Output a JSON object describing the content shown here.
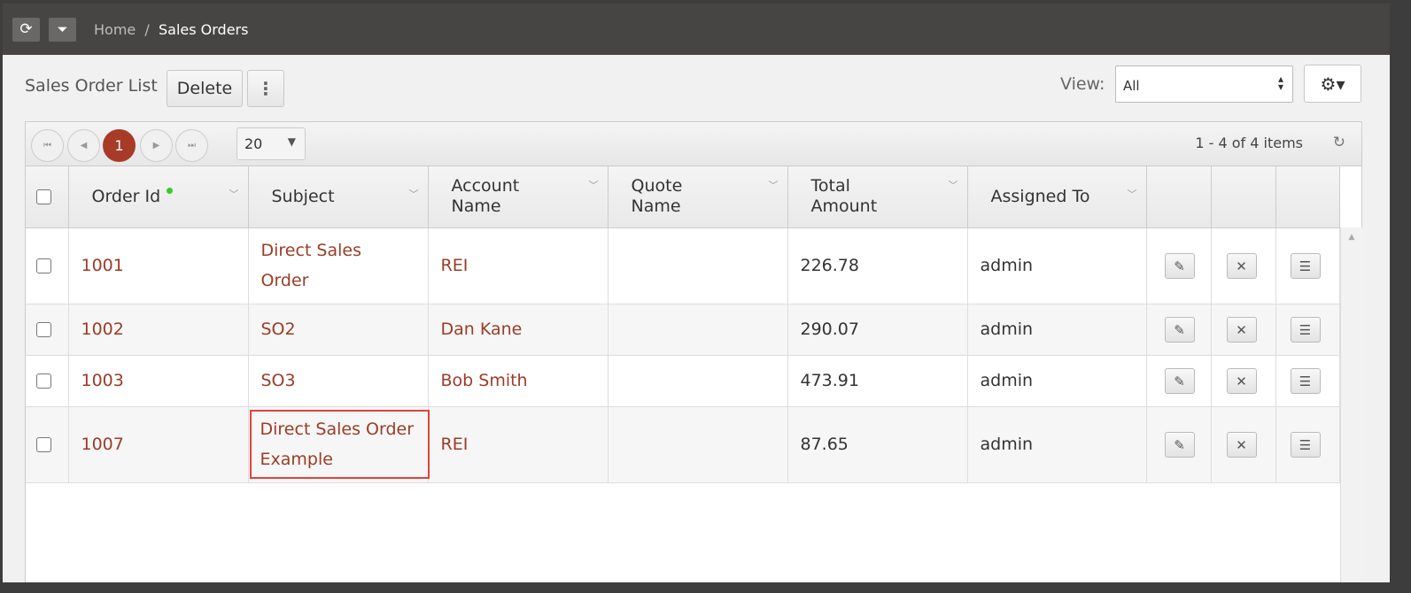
{
  "header": {
    "breadcrumb_home": "Home",
    "breadcrumb_sep": "/",
    "breadcrumb_current": "Sales Orders"
  },
  "toolbar": {
    "title": "Sales Order List",
    "delete_label": "Delete",
    "more_icon": "vertical-dots-icon",
    "view_label": "View:",
    "view_value": "All",
    "settings_icon": "gear-icon"
  },
  "pager": {
    "current_page": "1",
    "page_size": "20",
    "info": "1 - 4 of 4 items"
  },
  "columns": [
    "Order Id",
    "Subject",
    "Account Name",
    "Quote Name",
    "Total Amount",
    "Assigned To"
  ],
  "rows": [
    {
      "order_id": "1001",
      "subject": "Direct Sales Order",
      "account": "REI",
      "quote": "",
      "total": "226.78",
      "assigned": "admin"
    },
    {
      "order_id": "1002",
      "subject": "SO2",
      "account": "Dan Kane",
      "quote": "",
      "total": "290.07",
      "assigned": "admin"
    },
    {
      "order_id": "1003",
      "subject": "SO3",
      "account": "Bob Smith",
      "quote": "",
      "total": "473.91",
      "assigned": "admin"
    },
    {
      "order_id": "1007",
      "subject": "Direct Sales Order Example",
      "account": "REI",
      "quote": "",
      "total": "87.65",
      "assigned": "admin",
      "highlighted": true
    }
  ],
  "colors": {
    "link": "#9b3c26",
    "accent": "#a83a28",
    "highlight": "#e0433a"
  }
}
